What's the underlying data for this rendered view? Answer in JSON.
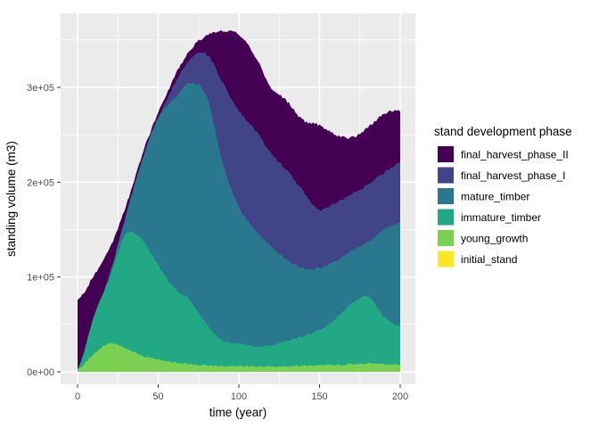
{
  "colors": {
    "background": "#FFFFFF",
    "panel_bg": "#EBEBEB",
    "grid_major": "#FFFFFF",
    "grid_minor": "#FFFFFF",
    "tick_mark": "#333333",
    "axis_text": "#4D4D4D",
    "title_text": "#000000"
  },
  "x_axis": {
    "title": "time (year)",
    "tick_labels": [
      "0",
      "50",
      "100",
      "150",
      "200"
    ],
    "tick_values": [
      0,
      50,
      100,
      150,
      200
    ],
    "minor_values": [
      25,
      75,
      125,
      175
    ],
    "range": [
      0,
      200
    ]
  },
  "y_axis": {
    "title": "standing volume (m3)",
    "tick_labels": [
      "0e+00",
      "1e+05",
      "2e+05",
      "3e+05"
    ],
    "tick_values": [
      0,
      100000,
      200000,
      300000
    ],
    "minor_values": [
      50000,
      150000,
      250000,
      350000
    ],
    "range": [
      0,
      365000
    ]
  },
  "legend": {
    "title": "stand development phase",
    "items": [
      {
        "label": "final_harvest_phase_II",
        "color": "#440154"
      },
      {
        "label": "final_harvest_phase_I",
        "color": "#414487"
      },
      {
        "label": "mature_timber",
        "color": "#2A788E"
      },
      {
        "label": "immature_timber",
        "color": "#22A884"
      },
      {
        "label": "young_growth",
        "color": "#7AD151"
      },
      {
        "label": "initial_stand",
        "color": "#FDE725"
      }
    ]
  },
  "chart_data": {
    "type": "area",
    "stacked": true,
    "title": "",
    "xlabel": "time (year)",
    "ylabel": "standing volume (m3)",
    "xlim": [
      0,
      200
    ],
    "ylim": [
      0,
      365000
    ],
    "grid": true,
    "legend_position": "right",
    "x": [
      0,
      10,
      20,
      30,
      40,
      50,
      60,
      70,
      80,
      90,
      100,
      110,
      120,
      130,
      140,
      150,
      160,
      170,
      180,
      190,
      200
    ],
    "series": [
      {
        "name": "initial_stand",
        "color": "#FDE725",
        "values": [
          0,
          0,
          0,
          0,
          0,
          0,
          0,
          0,
          0,
          0,
          0,
          0,
          0,
          0,
          0,
          0,
          0,
          0,
          0,
          0,
          0
        ]
      },
      {
        "name": "young_growth",
        "color": "#7AD151",
        "values": [
          2000,
          19000,
          30000,
          25000,
          17000,
          13000,
          10000,
          8000,
          7000,
          6000,
          6000,
          5500,
          5500,
          6000,
          6500,
          7000,
          7500,
          8000,
          9000,
          8500,
          7500
        ]
      },
      {
        "name": "immature_timber",
        "color": "#22A884",
        "values": [
          0,
          38000,
          70000,
          120000,
          123000,
          99000,
          78000,
          67000,
          43000,
          27000,
          24000,
          21500,
          22500,
          27000,
          31500,
          37000,
          48500,
          64000,
          71000,
          49500,
          40500
        ]
      },
      {
        "name": "mature_timber",
        "color": "#2A788E",
        "values": [
          0,
          0,
          3000,
          20000,
          83000,
          156000,
          200000,
          230000,
          240000,
          187000,
          144000,
          123000,
          104000,
          85000,
          71000,
          66000,
          61000,
          56000,
          57000,
          92000,
          110000
        ]
      },
      {
        "name": "final_harvest_phase_I",
        "color": "#414487",
        "values": [
          0,
          0,
          0,
          0,
          0,
          0,
          15000,
          25000,
          45000,
          85000,
          101000,
          105000,
          98000,
          94000,
          81000,
          61000,
          61000,
          60000,
          60000,
          60000,
          62000
        ]
      },
      {
        "name": "final_harvest_phase_II",
        "color": "#440154",
        "values": [
          74000,
          44000,
          27000,
          10000,
          6000,
          5000,
          8000,
          10000,
          20000,
          55000,
          80000,
          78000,
          70000,
          73000,
          75000,
          89000,
          72000,
          59000,
          61000,
          62000,
          55000
        ]
      }
    ]
  }
}
